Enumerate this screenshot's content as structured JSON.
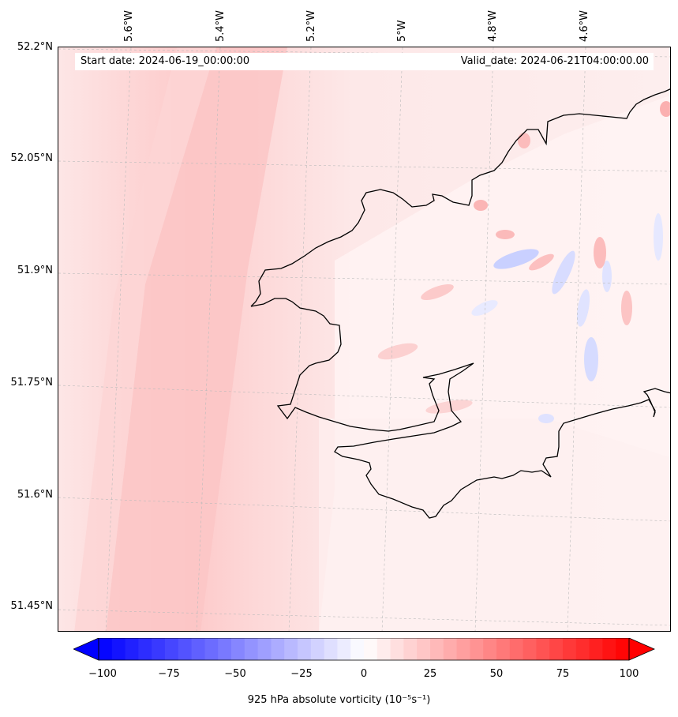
{
  "header": {
    "start_date": "Start date: 2024-06-19_00:00:00",
    "valid_date": "Valid_date: 2024-06-21T04:00:00.00"
  },
  "axes": {
    "lat_labels": [
      "52.2°N",
      "52.05°N",
      "51.9°N",
      "51.75°N",
      "51.6°N",
      "51.45°N"
    ],
    "lon_labels": [
      "5.6°W",
      "5.4°W",
      "5.2°W",
      "5°W",
      "4.8°W",
      "4.6°W"
    ]
  },
  "colorbar": {
    "ticks": [
      "−100",
      "−75",
      "−50",
      "−25",
      "0",
      "25",
      "50",
      "75",
      "100"
    ],
    "label": "925 hPa absolute vorticity (10⁻⁵s⁻¹)",
    "min": -100,
    "max": 100,
    "neg_color": "#0000ff",
    "zero_color": "#ffffff",
    "pos_color": "#ff0000"
  },
  "map": {
    "ocean_color": "#fde4e4",
    "band_color": "#fdd0d0",
    "land_color": "#fff2f2",
    "coastline_color": "#000000",
    "grid_color": "#bbbbbb"
  }
}
